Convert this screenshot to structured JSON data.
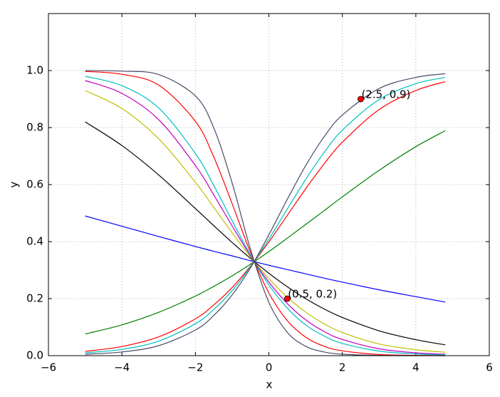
{
  "chart_data": {
    "type": "line",
    "xlabel": "x",
    "ylabel": "y",
    "xlim": [
      -6,
      6
    ],
    "xticks": [
      {
        "value": -6,
        "label": "−6"
      },
      {
        "value": -4,
        "label": "−4"
      },
      {
        "value": -2,
        "label": "−2"
      },
      0,
      2,
      4,
      6
    ],
    "ylim": [
      0,
      1.2
    ],
    "yticks": [
      {
        "value": 0,
        "label": "0.0"
      },
      0.2,
      0.4,
      0.6,
      0.8,
      {
        "value": 1,
        "label": "1.0"
      }
    ],
    "grid": true,
    "x": [
      -5,
      -4,
      -3,
      -2,
      -1.5,
      -1,
      -0.5,
      0,
      0.5,
      1,
      1.5,
      2,
      3,
      4,
      4.8
    ],
    "series": [
      {
        "color": "#0000ff",
        "values": [
          0.49,
          0.454,
          0.418,
          0.383,
          0.366,
          0.35,
          0.333,
          0.317,
          0.302,
          0.287,
          0.272,
          0.258,
          0.231,
          0.207,
          0.188
        ]
      },
      {
        "color": "#008000",
        "values": [
          0.076,
          0.108,
          0.152,
          0.209,
          0.243,
          0.28,
          0.321,
          0.365,
          0.412,
          0.46,
          0.508,
          0.557,
          0.65,
          0.733,
          0.789
        ]
      },
      {
        "color": "#000000",
        "values": [
          0.82,
          0.737,
          0.634,
          0.516,
          0.456,
          0.397,
          0.341,
          0.289,
          0.242,
          0.2,
          0.164,
          0.134,
          0.087,
          0.056,
          0.038
        ]
      },
      {
        "color": "#bfbf00",
        "values": [
          0.93,
          0.867,
          0.761,
          0.608,
          0.52,
          0.431,
          0.346,
          0.27,
          0.205,
          0.153,
          0.112,
          0.081,
          0.041,
          0.021,
          0.012
        ]
      },
      {
        "color": "#ff0000",
        "values": [
          0.015,
          0.032,
          0.066,
          0.129,
          0.178,
          0.239,
          0.314,
          0.399,
          0.492,
          0.585,
          0.672,
          0.749,
          0.863,
          0.93,
          0.961
        ]
      },
      {
        "color": "#bf00bf",
        "values": [
          0.965,
          0.92,
          0.828,
          0.667,
          0.564,
          0.455,
          0.35,
          0.258,
          0.183,
          0.126,
          0.085,
          0.057,
          0.024,
          0.01,
          0.005
        ]
      },
      {
        "color": "#00bfbf",
        "values": [
          0.01,
          0.022,
          0.051,
          0.112,
          0.162,
          0.228,
          0.312,
          0.409,
          0.514,
          0.618,
          0.712,
          0.791,
          0.898,
          0.954,
          0.976
        ]
      },
      {
        "color": "#00bfbf",
        "values": [
          0.98,
          0.947,
          0.869,
          0.709,
          0.597,
          0.473,
          0.353,
          0.248,
          0.167,
          0.108,
          0.069,
          0.043,
          0.016,
          0.006,
          0.003
        ]
      },
      {
        "color": "#ff0000",
        "values": [
          0.997,
          0.987,
          0.949,
          0.822,
          0.697,
          0.533,
          0.362,
          0.22,
          0.123,
          0.065,
          0.033,
          0.017,
          0.004,
          0.001,
          0.0
        ]
      },
      {
        "color": "#4a4a6a",
        "values": [
          0.005,
          0.013,
          0.035,
          0.09,
          0.141,
          0.213,
          0.308,
          0.424,
          0.548,
          0.666,
          0.767,
          0.844,
          0.937,
          0.976,
          0.989
        ]
      },
      {
        "color": "#4a4a6a",
        "values": [
          1.0,
          0.998,
          0.986,
          0.911,
          0.799,
          0.606,
          0.373,
          0.187,
          0.082,
          0.033,
          0.013,
          0.005,
          0.001,
          0.0,
          0.0
        ]
      }
    ],
    "points": {
      "color": "#ff0000",
      "x": [
        0.5,
        2.5
      ],
      "y": [
        0.2,
        0.9
      ],
      "labels": [
        "(0.5, 0.2)",
        "(2.5, 0.9)"
      ]
    }
  }
}
